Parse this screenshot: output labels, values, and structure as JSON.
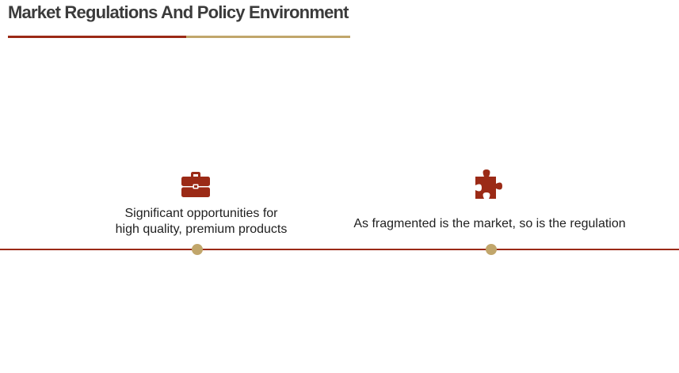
{
  "header": {
    "title": "Market Regulations And Policy Environment"
  },
  "colors": {
    "accent_red": "#9b2a16",
    "accent_gold": "#c1a66b",
    "title_text": "#3b3b3b"
  },
  "timeline": {
    "points": [
      {
        "icon": "briefcase-icon",
        "caption_lines": [
          "Significant opportunities for",
          "high quality, premium products"
        ]
      },
      {
        "icon": "puzzle-piece-icon",
        "caption": "As fragmented is the market, so is the regulation"
      }
    ]
  }
}
